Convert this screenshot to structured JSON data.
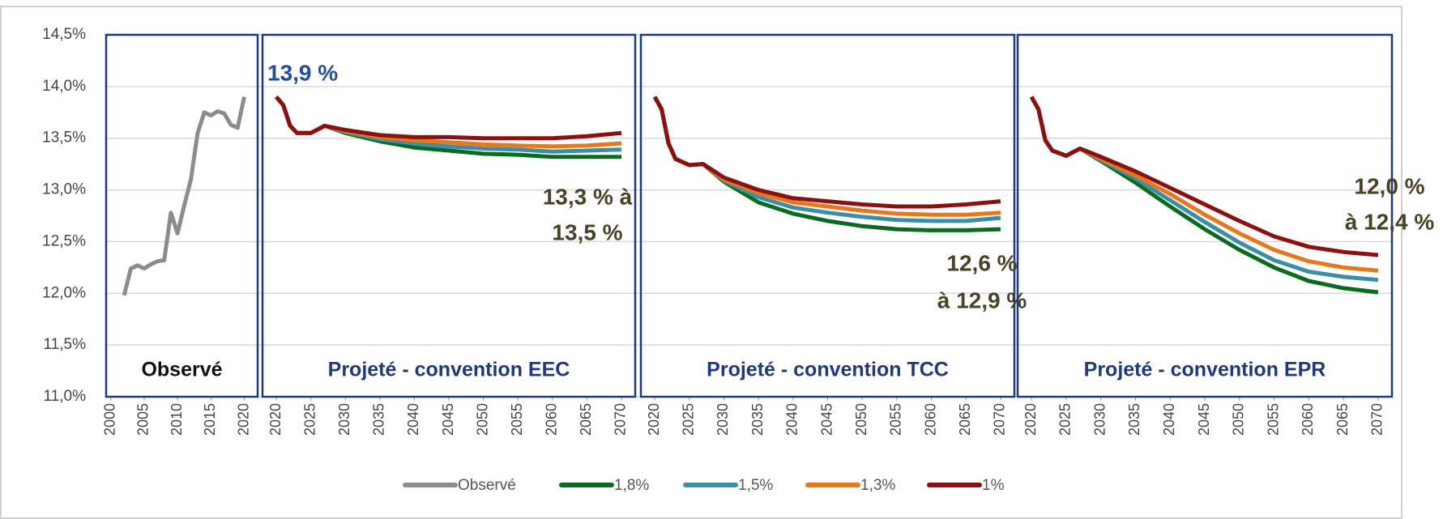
{
  "chart_data": [
    {
      "type": "line",
      "title": "Observé",
      "xlim": [
        1999.3,
        2022
      ],
      "xticks": [
        2000,
        2005,
        2010,
        2015,
        2020
      ],
      "ylim": [
        11,
        14.5
      ],
      "yticks": [
        {
          "value": 11,
          "label": "11,0%"
        },
        {
          "value": 11.5,
          "label": "11,5%"
        },
        {
          "value": 12,
          "label": "12,0%"
        },
        {
          "value": 12.5,
          "label": "12,5%"
        },
        {
          "value": 13,
          "label": "13,0%"
        },
        {
          "value": 13.5,
          "label": "13,5%"
        },
        {
          "value": 14,
          "label": "14,0%"
        },
        {
          "value": 14.5,
          "label": "14,5%"
        }
      ],
      "grid": true,
      "x": [
        2002,
        2003,
        2004,
        2005,
        2006,
        2007,
        2008,
        2009,
        2010,
        2011,
        2012,
        2013,
        2014,
        2015,
        2016,
        2017,
        2018,
        2019,
        2020
      ],
      "series": [
        {
          "name": "Observé",
          "color": "#8c8c8c",
          "values": [
            11.98,
            12.24,
            12.27,
            12.24,
            12.28,
            12.31,
            12.32,
            12.78,
            12.58,
            12.85,
            13.1,
            13.55,
            13.75,
            13.72,
            13.76,
            13.74,
            13.63,
            13.6,
            13.9
          ]
        }
      ]
    },
    {
      "type": "line",
      "title": "Projeté - convention EEC",
      "xlim": [
        2018,
        2072
      ],
      "xticks": [
        2020,
        2025,
        2030,
        2035,
        2040,
        2045,
        2050,
        2055,
        2060,
        2065,
        2070
      ],
      "ylim": [
        11,
        14.5
      ],
      "annotations": [
        {
          "text": [
            "13,9 %"
          ]
        },
        {
          "text": [
            "13,3 % à",
            "13,5 %"
          ]
        }
      ],
      "x": [
        2020,
        2021,
        2022,
        2023,
        2025,
        2027,
        2030,
        2035,
        2040,
        2045,
        2050,
        2055,
        2060,
        2065,
        2070
      ],
      "series": [
        {
          "name": "1,8%",
          "color": "#0a6b1e",
          "values": [
            13.9,
            13.82,
            13.62,
            13.55,
            13.55,
            13.62,
            13.55,
            13.47,
            13.41,
            13.38,
            13.35,
            13.34,
            13.32,
            13.32,
            13.32
          ]
        },
        {
          "name": "1,5%",
          "color": "#3a8fa6",
          "values": [
            13.9,
            13.82,
            13.62,
            13.55,
            13.55,
            13.62,
            13.56,
            13.49,
            13.45,
            13.42,
            13.4,
            13.39,
            13.37,
            13.38,
            13.39
          ]
        },
        {
          "name": "1,3%",
          "color": "#e8771c",
          "values": [
            13.9,
            13.82,
            13.62,
            13.55,
            13.55,
            13.62,
            13.57,
            13.51,
            13.48,
            13.46,
            13.44,
            13.43,
            13.42,
            13.43,
            13.45
          ]
        },
        {
          "name": "1%",
          "color": "#8b1010",
          "values": [
            13.9,
            13.82,
            13.62,
            13.55,
            13.55,
            13.62,
            13.58,
            13.53,
            13.51,
            13.51,
            13.5,
            13.5,
            13.5,
            13.52,
            13.55
          ]
        }
      ]
    },
    {
      "type": "line",
      "title": "Projeté - convention TCC",
      "xlim": [
        2018,
        2072
      ],
      "xticks": [
        2020,
        2025,
        2030,
        2035,
        2040,
        2045,
        2050,
        2055,
        2060,
        2065,
        2070
      ],
      "ylim": [
        11,
        14.5
      ],
      "annotations": [
        {
          "text": [
            "12,6 %",
            "à 12,9 %"
          ]
        }
      ],
      "x": [
        2020,
        2021,
        2022,
        2023,
        2025,
        2027,
        2030,
        2035,
        2040,
        2045,
        2050,
        2055,
        2060,
        2065,
        2070
      ],
      "series": [
        {
          "name": "1,8%",
          "color": "#0a6b1e",
          "values": [
            13.9,
            13.78,
            13.45,
            13.3,
            13.24,
            13.25,
            13.08,
            12.88,
            12.77,
            12.7,
            12.65,
            12.62,
            12.61,
            12.61,
            12.62
          ]
        },
        {
          "name": "1,5%",
          "color": "#3a8fa6",
          "values": [
            13.9,
            13.78,
            13.45,
            13.3,
            13.24,
            13.25,
            13.09,
            12.93,
            12.83,
            12.78,
            12.74,
            12.71,
            12.7,
            12.7,
            12.73
          ]
        },
        {
          "name": "1,3%",
          "color": "#e8771c",
          "values": [
            13.9,
            13.78,
            13.45,
            13.3,
            13.24,
            13.25,
            13.1,
            12.97,
            12.88,
            12.84,
            12.8,
            12.77,
            12.76,
            12.76,
            12.78
          ]
        },
        {
          "name": "1%",
          "color": "#8b1010",
          "values": [
            13.9,
            13.78,
            13.45,
            13.3,
            13.24,
            13.25,
            13.12,
            13.0,
            12.92,
            12.89,
            12.86,
            12.84,
            12.84,
            12.86,
            12.89
          ]
        }
      ]
    },
    {
      "type": "line",
      "title": "Projeté - convention EPR",
      "xlim": [
        2018,
        2072
      ],
      "xticks": [
        2020,
        2025,
        2030,
        2035,
        2040,
        2045,
        2050,
        2055,
        2060,
        2065,
        2070
      ],
      "ylim": [
        11,
        14.5
      ],
      "annotations": [
        {
          "text": [
            "12,0 %",
            "à 12,4 %"
          ]
        }
      ],
      "x": [
        2020,
        2021,
        2022,
        2023,
        2025,
        2027,
        2030,
        2035,
        2040,
        2045,
        2050,
        2055,
        2060,
        2065,
        2070
      ],
      "series": [
        {
          "name": "1,8%",
          "color": "#0a6b1e",
          "values": [
            13.9,
            13.78,
            13.48,
            13.38,
            13.33,
            13.4,
            13.28,
            13.07,
            12.84,
            12.62,
            12.42,
            12.25,
            12.12,
            12.05,
            12.01
          ]
        },
        {
          "name": "1,5%",
          "color": "#3a8fa6",
          "values": [
            13.9,
            13.78,
            13.48,
            13.38,
            13.33,
            13.4,
            13.29,
            13.11,
            12.9,
            12.69,
            12.49,
            12.32,
            12.21,
            12.16,
            12.13
          ]
        },
        {
          "name": "1,3%",
          "color": "#e8771c",
          "values": [
            13.9,
            13.78,
            13.48,
            13.38,
            13.33,
            13.4,
            13.3,
            13.14,
            12.96,
            12.76,
            12.58,
            12.42,
            12.31,
            12.25,
            12.22
          ]
        },
        {
          "name": "1%",
          "color": "#8b1010",
          "values": [
            13.9,
            13.78,
            13.48,
            13.38,
            13.33,
            13.4,
            13.32,
            13.18,
            13.02,
            12.86,
            12.7,
            12.55,
            12.45,
            12.4,
            12.37
          ]
        }
      ]
    }
  ]
}
